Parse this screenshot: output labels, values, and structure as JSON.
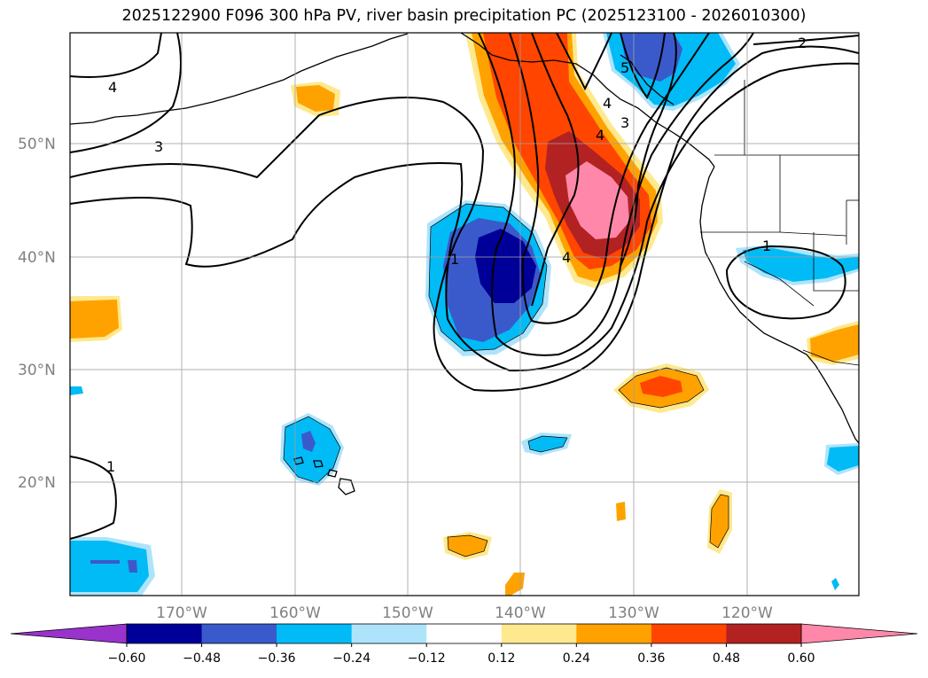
{
  "title": "2025122900 F096 300 hPa PV, river basin precipitation PC (2025123100 - 2026010300)",
  "lat_labels": [
    "50°N",
    "40°N",
    "30°N",
    "20°N"
  ],
  "lon_labels": [
    "170°W",
    "160°W",
    "150°W",
    "140°W",
    "130°W",
    "120°W"
  ],
  "contour_labels": [
    "4",
    "3",
    "2",
    "5",
    "4",
    "3",
    "4",
    "4",
    "1",
    "1",
    "1"
  ],
  "colorbar": {
    "ticks": [
      "−0.60",
      "−0.48",
      "−0.36",
      "−0.24",
      "−0.12",
      "0.12",
      "0.24",
      "0.36",
      "0.48",
      "0.60"
    ],
    "colors": [
      "#9933cc",
      "#000099",
      "#3a5acc",
      "#00bbf6",
      "#aee4fb",
      "#ffffff",
      "#ffe98e",
      "#ffa200",
      "#ff4500",
      "#b22222",
      "#ff88aa"
    ]
  }
}
